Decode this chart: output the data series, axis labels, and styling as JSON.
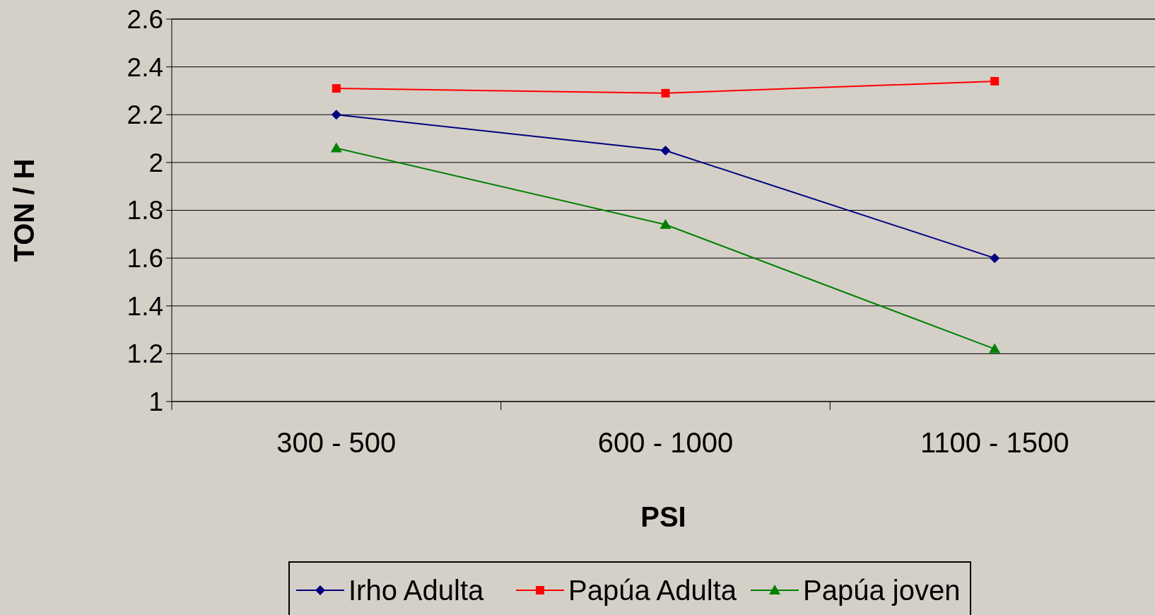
{
  "chart_data": {
    "type": "line",
    "xlabel": "PSI",
    "ylabel": "TON / H",
    "categories": [
      "300 - 500",
      "600 - 1000",
      "1100 - 1500"
    ],
    "series": [
      {
        "name": "Irho Adulta",
        "color": "#000080",
        "marker": "diamond",
        "values": [
          2.2,
          2.05,
          1.6
        ]
      },
      {
        "name": "Papúa Adulta",
        "color": "#ff0000",
        "marker": "square",
        "values": [
          2.31,
          2.29,
          2.34
        ]
      },
      {
        "name": "Papúa joven",
        "color": "#008000",
        "marker": "triangle",
        "values": [
          2.06,
          1.74,
          1.22
        ]
      }
    ],
    "ylim": [
      1,
      2.6
    ],
    "yticks": [
      1,
      1.2,
      1.4,
      1.6,
      1.8,
      2,
      2.2,
      2.4,
      2.6
    ],
    "grid": "y",
    "legend": "bottom"
  }
}
